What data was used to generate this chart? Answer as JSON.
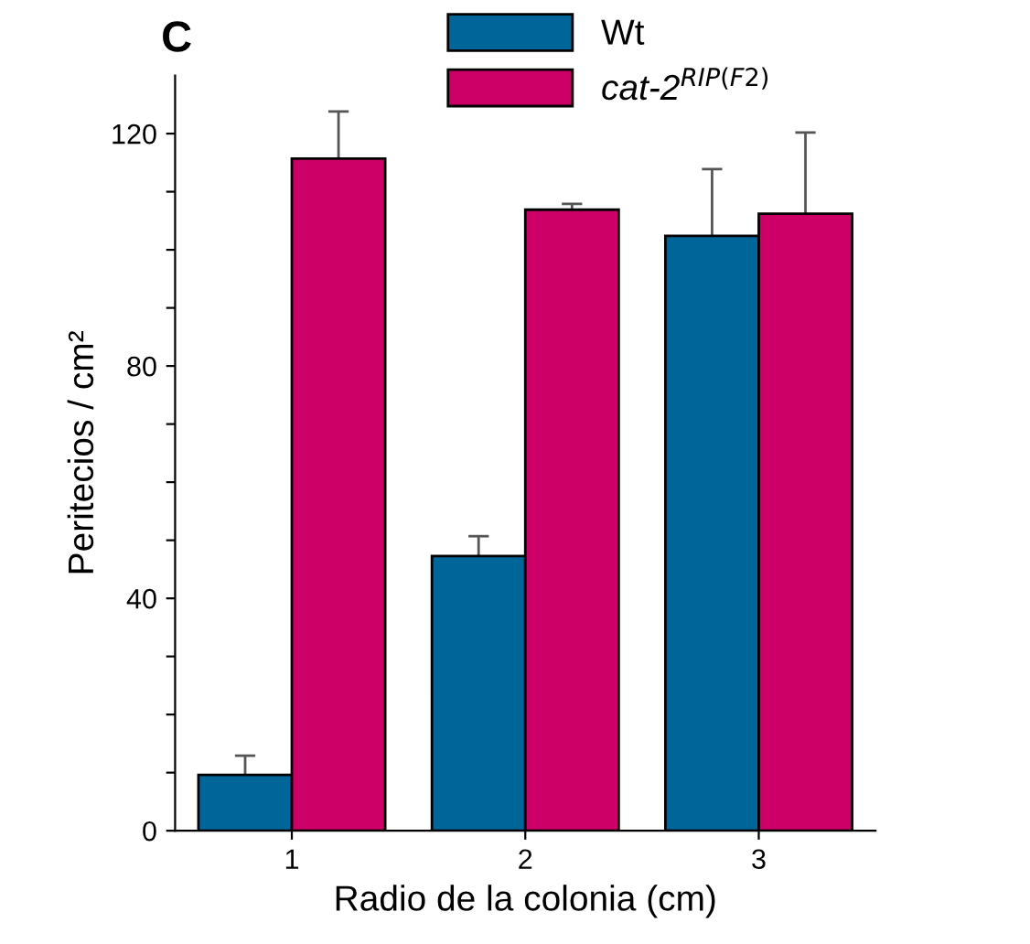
{
  "chart_data": {
    "type": "bar",
    "title": "C",
    "xlabel": "Radio de la colonia (cm)",
    "ylabel": "Peritecios / cm²",
    "categories": [
      "1",
      "2",
      "3"
    ],
    "series": [
      {
        "name": "Wt",
        "color": "#006699",
        "values": [
          9.6,
          47.3,
          102.4
        ],
        "errors": [
          3.3,
          3.4,
          11.5
        ]
      },
      {
        "name": "cat-2$^{RIP(F2)}$",
        "color": "#cc0066",
        "values": [
          115.7,
          106.9,
          106.2
        ],
        "errors": [
          8.1,
          1,
          14
        ]
      }
    ],
    "ylim": [
      0,
      130
    ],
    "yticks": [
      0,
      {
        "value": 10,
        "label": null
      },
      {
        "value": 20,
        "label": null
      },
      {
        "value": 30,
        "label": null
      },
      40,
      {
        "value": 50,
        "label": null
      },
      {
        "value": 60,
        "label": null
      },
      {
        "value": 70,
        "label": null
      },
      80,
      {
        "value": 90,
        "label": null
      },
      {
        "value": 100,
        "label": null
      },
      {
        "value": 110,
        "label": null
      },
      120
    ],
    "grid": false,
    "legend": "top"
  }
}
